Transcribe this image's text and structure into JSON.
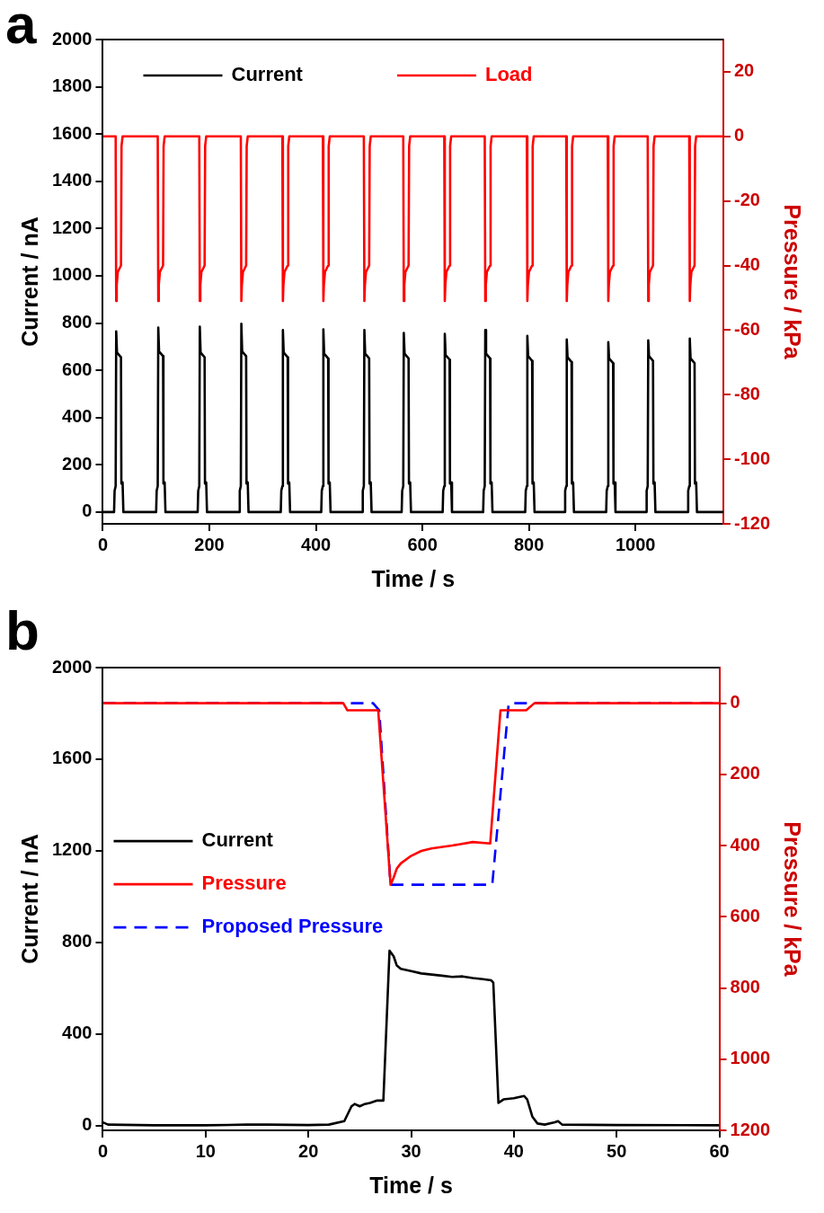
{
  "chart_data": [
    {
      "type": "line",
      "title": "a",
      "xlabel": "Time / s",
      "ylabel": "Current / nA",
      "y2label": "Pressure / kPa",
      "legend": "top left",
      "xlim": [
        0,
        1165
      ],
      "xticks": [
        0,
        200,
        400,
        600,
        800,
        1000
      ],
      "ylim": [
        -50,
        2000
      ],
      "yticks": [
        0,
        200,
        400,
        600,
        800,
        1000,
        1200,
        1400,
        1600,
        1800,
        2000
      ],
      "y2lim": [
        -120,
        30
      ],
      "y2ticks": [
        -120,
        -100,
        -80,
        -60,
        -40,
        -20,
        0,
        20
      ],
      "series": [
        {
          "name": "Current",
          "color": "#000000",
          "x": [
            0,
            21,
            22,
            24,
            25,
            26.5,
            34,
            34.7,
            37,
            38.5,
            100,
            101,
            103,
            104,
            105.5,
            113,
            113.7,
            116,
            117.5,
            178,
            179,
            181,
            182,
            183.5,
            191,
            191.7,
            194,
            195.5,
            256,
            257,
            259,
            260,
            261.5,
            269,
            269.7,
            272,
            273.5,
            334,
            335,
            337,
            338,
            339.5,
            347,
            347.7,
            350,
            351.5,
            410,
            411,
            413,
            414,
            415.5,
            423,
            423.7,
            426,
            427.5,
            487,
            488,
            490,
            491,
            492.5,
            500,
            500.7,
            503,
            504.5,
            561,
            562,
            564,
            565,
            566.5,
            574,
            574.7,
            577,
            578.5,
            638,
            639,
            641,
            642,
            643.5,
            651,
            651.7,
            654,
            655.5,
            714,
            715,
            717,
            718,
            719.5,
            727,
            727.7,
            730,
            731.5,
            793,
            794,
            796,
            797,
            798.5,
            806,
            806.7,
            809,
            810.5,
            867,
            868,
            870,
            871,
            872.5,
            880,
            880.7,
            883,
            884.5,
            945,
            946,
            948,
            949,
            950.5,
            958,
            958.7,
            961,
            962.5,
            1020,
            1021,
            1023,
            1024,
            1025.5,
            1033,
            1033.7,
            1036,
            1037.5,
            1098,
            1099,
            1101,
            1102,
            1103.5,
            1111,
            1111.7,
            1114,
            1115.5,
            1165
          ],
          "values": [
            0,
            0,
            90,
            110,
            765,
            675,
            655,
            120,
            125,
            0,
            0,
            90,
            110,
            781,
            680,
            660,
            120,
            125,
            0,
            0,
            90,
            110,
            785,
            675,
            655,
            120,
            125,
            0,
            0,
            90,
            110,
            797,
            680,
            660,
            120,
            125,
            0,
            0,
            90,
            110,
            770,
            675,
            655,
            120,
            125,
            0,
            0,
            90,
            110,
            773,
            670,
            650,
            120,
            125,
            0,
            0,
            90,
            110,
            770,
            670,
            650,
            120,
            125,
            0,
            0,
            90,
            110,
            758,
            670,
            650,
            120,
            125,
            0,
            0,
            90,
            110,
            754,
            665,
            645,
            120,
            125,
            0,
            0,
            90,
            110,
            770,
            670,
            650,
            120,
            125,
            0,
            0,
            90,
            110,
            746,
            660,
            640,
            120,
            125,
            0,
            0,
            90,
            110,
            730,
            655,
            635,
            120,
            125,
            0,
            0,
            90,
            110,
            719,
            650,
            630,
            120,
            125,
            0,
            0,
            90,
            110,
            727,
            660,
            640,
            120,
            125,
            0,
            0,
            90,
            110,
            734,
            650,
            630,
            120,
            125,
            0,
            0
          ]
        },
        {
          "name": "Load",
          "color": "#ff0000",
          "axis": "y2",
          "x": [
            0,
            24,
            25,
            26,
            28,
            34,
            35,
            37,
            103,
            104,
            105,
            107,
            113,
            114,
            116,
            181,
            182,
            183,
            185,
            191,
            192,
            194,
            259,
            260,
            261,
            263,
            269,
            270,
            272,
            337,
            338,
            339,
            341,
            347,
            348,
            350,
            413,
            414,
            415,
            417,
            423,
            424,
            426,
            490,
            491,
            492,
            494,
            500,
            501,
            503,
            564,
            565,
            566,
            568,
            574,
            575,
            577,
            641,
            642,
            643,
            645,
            651,
            652,
            654,
            717,
            718,
            719,
            721,
            727,
            728,
            730,
            796,
            797,
            798,
            800,
            806,
            807,
            809,
            870,
            871,
            872,
            874,
            880,
            881,
            883,
            948,
            949,
            950,
            952,
            958,
            959,
            961,
            1023,
            1024,
            1025,
            1027,
            1033,
            1034,
            1036,
            1101,
            1102,
            1103,
            1105,
            1111,
            1112,
            1114,
            1165
          ],
          "values": [
            0,
            0,
            -51,
            -46,
            -42,
            -40,
            -3,
            0,
            0,
            -51,
            -46,
            -42,
            -40,
            -3,
            0,
            0,
            -51,
            -46,
            -42,
            -40,
            -3,
            0,
            0,
            -51,
            -46,
            -42,
            -40,
            -3,
            0,
            0,
            -51,
            -46,
            -42,
            -40,
            -3,
            0,
            0,
            -51,
            -46,
            -42,
            -40,
            -3,
            0,
            0,
            -51,
            -46,
            -42,
            -40,
            -3,
            0,
            0,
            -51,
            -46,
            -42,
            -40,
            -3,
            0,
            0,
            -51,
            -46,
            -42,
            -40,
            -3,
            0,
            0,
            -51,
            -46,
            -42,
            -40,
            -3,
            0,
            0,
            -51,
            -46,
            -42,
            -40,
            -3,
            0,
            0,
            -51,
            -46,
            -42,
            -40,
            -3,
            0,
            0,
            -51,
            -46,
            -42,
            -40,
            -3,
            0,
            0,
            -51,
            -46,
            -42,
            -40,
            -3,
            0,
            0,
            -51,
            -46,
            -42,
            -40,
            -3,
            0,
            0
          ]
        }
      ]
    },
    {
      "type": "line",
      "title": "b",
      "xlabel": "Time / s",
      "ylabel": "Current / nA",
      "y2label": "Pressure / kPa",
      "legend": "left",
      "xlim": [
        0,
        60
      ],
      "xticks": [
        0,
        10,
        20,
        30,
        40,
        50,
        60
      ],
      "ylim": [
        -20,
        2000
      ],
      "yticks": [
        0,
        400,
        800,
        1200,
        1600,
        2000
      ],
      "y2lim": [
        1200,
        -100
      ],
      "y2ticks": [
        0,
        200,
        400,
        600,
        800,
        1000,
        1200
      ],
      "series": [
        {
          "name": "Current",
          "color": "#000000",
          "x": [
            0,
            0.5,
            5,
            10,
            14,
            16,
            20,
            22,
            23.5,
            24.2,
            24.5,
            25,
            25.5,
            26,
            26.7,
            27.3,
            27.9,
            28.3,
            28.6,
            29,
            30,
            31,
            32,
            33,
            34,
            35,
            36,
            37,
            37.8,
            38,
            38.5,
            39,
            40,
            41,
            41.3,
            41.8,
            42.3,
            43,
            44,
            44.3,
            44.7,
            50,
            60
          ],
          "values": [
            15,
            5,
            2,
            2,
            5,
            5,
            3,
            5,
            20,
            85,
            95,
            85,
            95,
            100,
            110,
            110,
            764,
            740,
            700,
            685,
            675,
            665,
            660,
            655,
            650,
            652,
            645,
            640,
            635,
            625,
            100,
            115,
            120,
            130,
            115,
            40,
            10,
            5,
            15,
            20,
            5,
            3,
            2
          ]
        },
        {
          "name": "Pressure",
          "color": "#ff0000",
          "axis": "y2",
          "x": [
            0,
            23.4,
            23.8,
            26.8,
            28,
            28.3,
            28.6,
            29,
            30,
            31,
            32,
            34,
            36,
            37.7,
            38.7,
            41.2,
            42,
            60
          ],
          "values": [
            0,
            0,
            20,
            20,
            510,
            490,
            465,
            450,
            429,
            415,
            408,
            400,
            390,
            394,
            20,
            20,
            0,
            0
          ]
        },
        {
          "name": "Proposed Pressure",
          "color": "#0000ff",
          "axis": "y2",
          "line_style": "dashed",
          "x": [
            0,
            26.3,
            26.9,
            28,
            37.9,
            39.5,
            60
          ],
          "values": [
            0,
            0,
            20,
            510,
            510,
            0,
            0
          ]
        }
      ]
    }
  ]
}
